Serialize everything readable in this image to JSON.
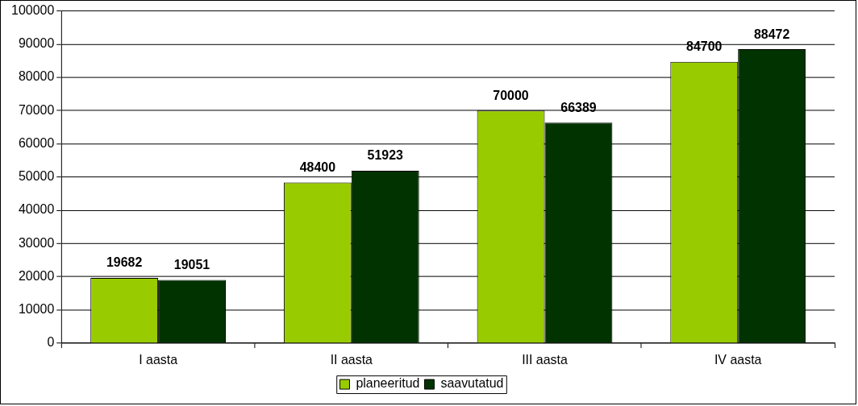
{
  "chart_data": {
    "type": "bar",
    "categories": [
      "I aasta",
      "II aasta",
      "III aasta",
      "IV aasta"
    ],
    "series": [
      {
        "name": "planeeritud",
        "color": "#99cc00",
        "values": [
          19682,
          48400,
          70000,
          84700
        ]
      },
      {
        "name": "saavutatud",
        "color": "#003300",
        "values": [
          19051,
          51923,
          66389,
          88472
        ]
      }
    ],
    "ylim": [
      0,
      100000
    ],
    "yticks": [
      0,
      10000,
      20000,
      30000,
      40000,
      50000,
      60000,
      70000,
      80000,
      90000,
      100000
    ],
    "grid": "y",
    "legend": "bottom",
    "data_labels": true
  }
}
